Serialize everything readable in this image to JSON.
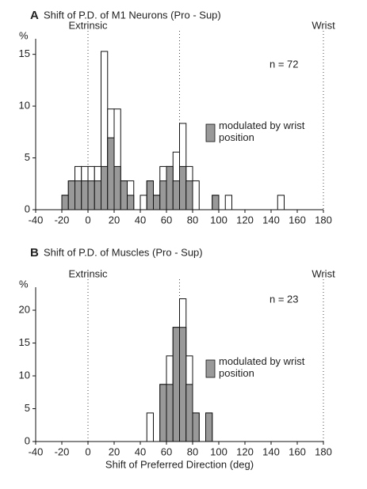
{
  "chart_data": [
    {
      "type": "histogram",
      "panel_label": "A",
      "title": "Shift of P.D. of M1 Neurons (Pro - Sup)",
      "ylabel": "%",
      "annotation": "n = 72",
      "reference_labels": [
        "Extrinsic",
        "Wrist"
      ],
      "reference_lines": [
        0,
        70,
        180
      ],
      "bins": [
        -20,
        -15,
        -10,
        -5,
        0,
        5,
        10,
        15,
        20,
        25,
        30,
        35,
        40,
        45,
        50,
        55,
        60,
        65,
        70,
        75,
        80,
        85,
        90,
        95,
        100,
        105,
        110,
        115,
        120,
        125,
        130,
        135,
        140,
        145,
        150
      ],
      "series": [
        {
          "color": "#ffffff",
          "values": [
            1.39,
            2.78,
            4.17,
            4.17,
            4.17,
            4.17,
            15.28,
            9.72,
            9.72,
            2.78,
            2.78,
            0,
            1.39,
            2.78,
            1.39,
            4.17,
            4.17,
            5.56,
            8.33,
            4.17,
            2.78,
            0,
            0,
            1.39,
            0,
            1.39,
            0,
            0,
            0,
            0,
            0,
            0,
            0,
            1.39
          ]
        },
        {
          "name": "modulated by wrist position",
          "color": "#999999",
          "values": [
            1.39,
            2.78,
            2.78,
            2.78,
            2.78,
            2.78,
            4.17,
            6.94,
            4.17,
            2.78,
            1.39,
            0,
            0,
            2.78,
            1.39,
            2.78,
            4.17,
            2.78,
            4.17,
            2.78,
            0,
            0,
            0,
            1.39,
            0,
            0,
            0,
            0,
            0,
            0,
            0,
            0,
            0,
            0
          ]
        }
      ],
      "xlim": [
        -40,
        180
      ],
      "xticks": [
        -40,
        -20,
        0,
        20,
        40,
        60,
        80,
        100,
        120,
        140,
        160,
        180
      ],
      "ylim": [
        0,
        16.5
      ],
      "yticks": [
        0,
        5,
        10,
        15
      ]
    },
    {
      "type": "histogram",
      "panel_label": "B",
      "title": "Shift of P.D. of Muscles (Pro - Sup)",
      "ylabel": "%",
      "annotation": "n = 23",
      "reference_labels": [
        "Extrinsic",
        "Wrist"
      ],
      "reference_lines": [
        0,
        70,
        180
      ],
      "xlabel": "Shift of Preferred Direction (deg)",
      "bins": [
        45,
        50,
        55,
        60,
        65,
        70,
        75,
        80,
        85,
        90,
        95
      ],
      "series": [
        {
          "color": "#ffffff",
          "values": [
            4.35,
            0,
            8.7,
            13.04,
            17.39,
            21.74,
            13.04,
            4.35,
            0,
            4.35
          ]
        },
        {
          "name": "modulated by wrist position",
          "color": "#999999",
          "values": [
            0,
            0,
            8.7,
            8.7,
            17.39,
            17.39,
            8.7,
            4.35,
            0,
            4.35
          ]
        }
      ],
      "xlim": [
        -40,
        180
      ],
      "xticks": [
        -40,
        -20,
        0,
        20,
        40,
        60,
        80,
        100,
        120,
        140,
        160,
        180
      ],
      "ylim": [
        0,
        23.5
      ],
      "yticks": [
        0,
        5,
        10,
        15,
        20
      ]
    }
  ]
}
